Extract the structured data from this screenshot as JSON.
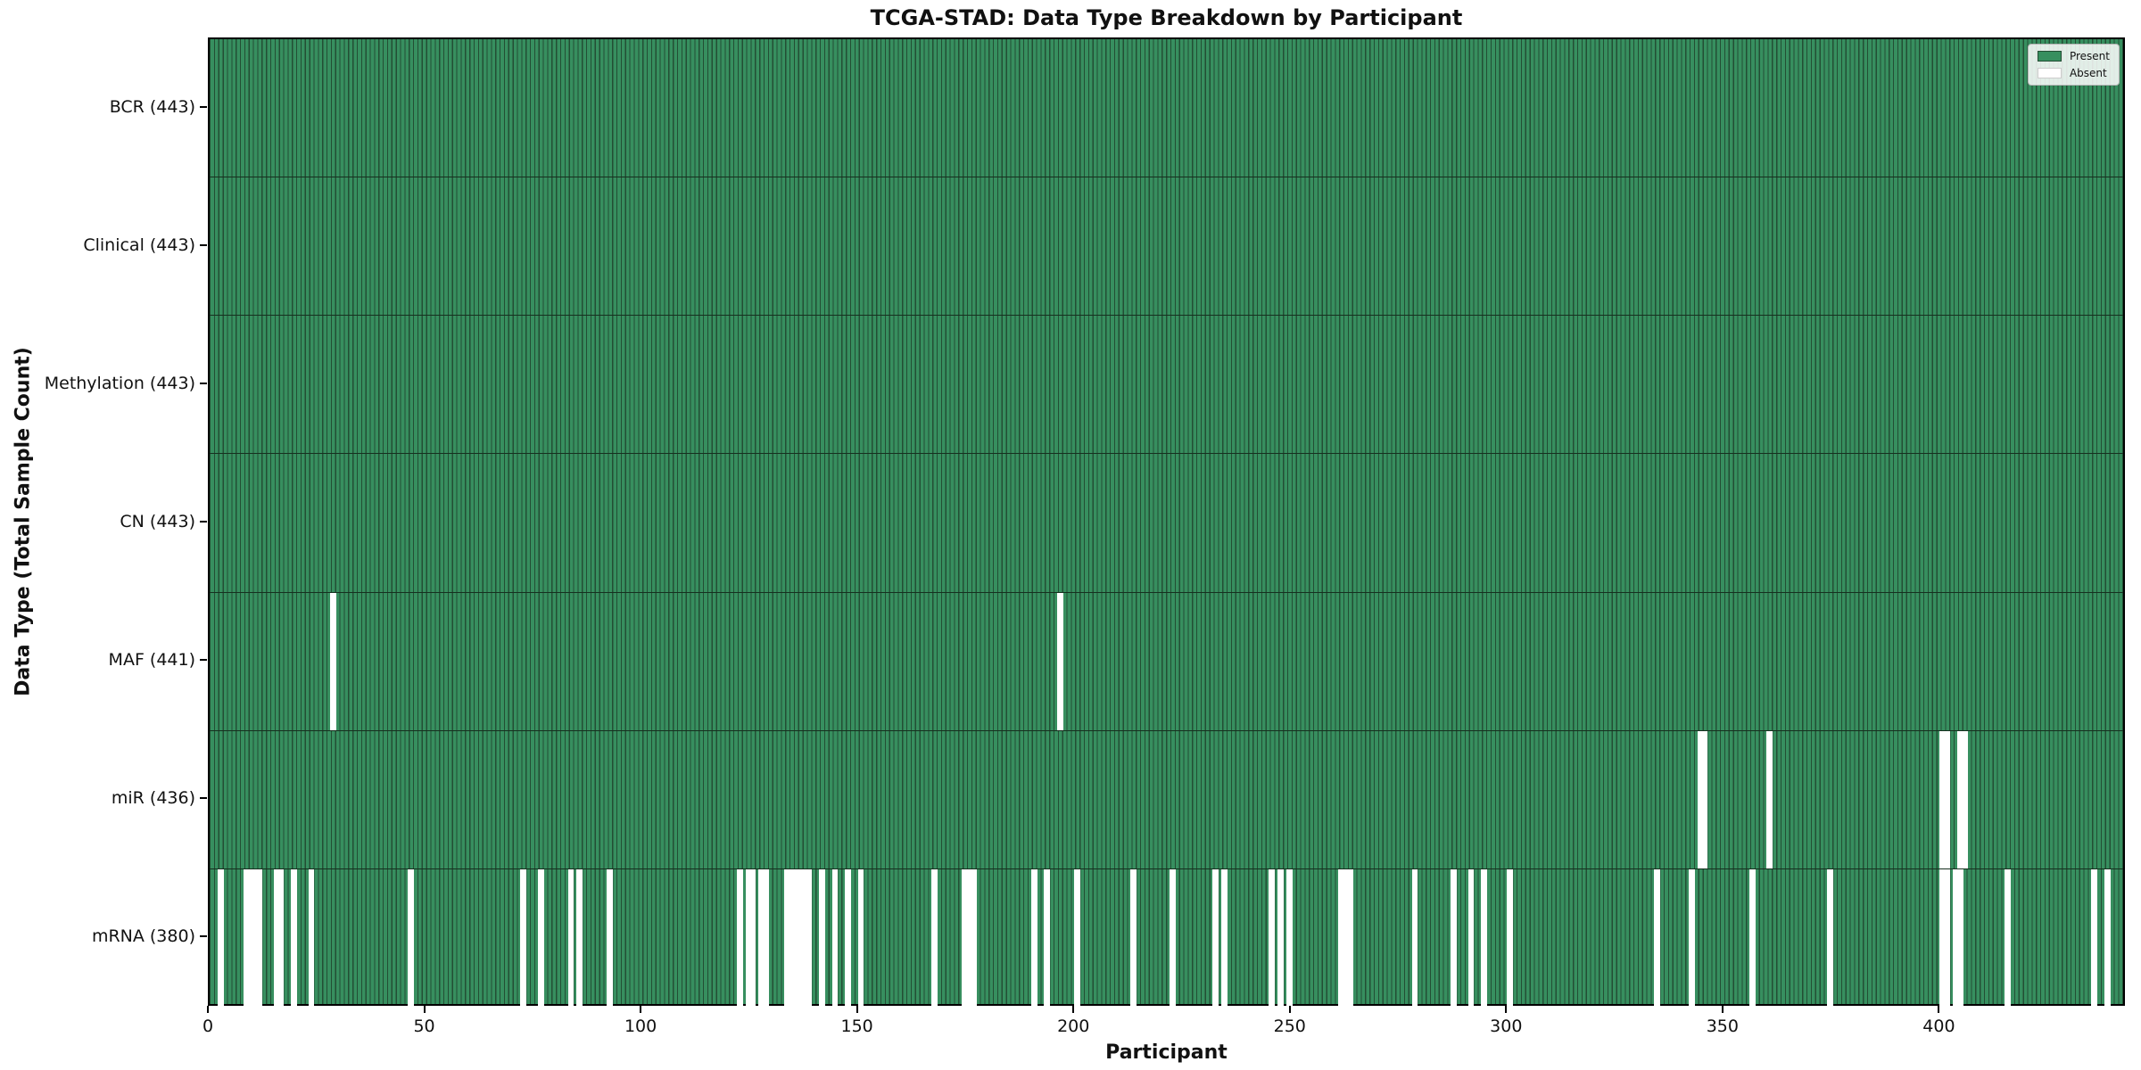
{
  "chart_data": {
    "type": "heatmap",
    "title": "TCGA-STAD: Data Type Breakdown by Participant",
    "xlabel": "Participant",
    "ylabel": "Data Type (Total Sample Count)",
    "n_participants": 443,
    "x_ticks": [
      0,
      50,
      100,
      150,
      200,
      250,
      300,
      350,
      400
    ],
    "grid": false,
    "legend_position": "upper-right",
    "legend": {
      "entries": [
        {
          "label": "Present",
          "value": "present"
        },
        {
          "label": "Absent",
          "value": "absent"
        }
      ]
    },
    "rows": [
      {
        "label": "BCR (443)",
        "data_type": "BCR",
        "total": 443,
        "absent_participants": []
      },
      {
        "label": "Clinical (443)",
        "data_type": "Clinical",
        "total": 443,
        "absent_participants": []
      },
      {
        "label": "Methylation (443)",
        "data_type": "Methylation",
        "total": 443,
        "absent_participants": []
      },
      {
        "label": "CN (443)",
        "data_type": "CN",
        "total": 443,
        "absent_participants": []
      },
      {
        "label": "MAF (441)",
        "data_type": "MAF",
        "total": 441,
        "absent_participants": [
          28,
          196
        ]
      },
      {
        "label": "miR (436)",
        "data_type": "miR",
        "total": 436,
        "absent_participants": [
          344,
          345,
          360,
          400,
          401,
          404,
          405
        ]
      },
      {
        "label": "mRNA (380)",
        "data_type": "mRNA",
        "total": 380,
        "absent_participants": [
          2,
          8,
          9,
          10,
          11,
          15,
          16,
          19,
          23,
          46,
          72,
          76,
          83,
          85,
          92,
          122,
          124,
          125,
          127,
          128,
          133,
          134,
          135,
          136,
          137,
          138,
          141,
          144,
          147,
          150,
          167,
          174,
          175,
          176,
          190,
          193,
          200,
          213,
          222,
          232,
          234,
          245,
          247,
          249,
          261,
          262,
          263,
          278,
          287,
          291,
          294,
          300,
          334,
          342,
          356,
          374,
          400,
          401,
          403,
          404,
          415,
          435,
          438
        ]
      }
    ],
    "colors": {
      "present_fill": "#378f5f",
      "bar_edge": "#234e34",
      "row_border": "#16301f",
      "absent": "#ffffff",
      "plot_border": "#000000",
      "background": "#ffffff"
    }
  }
}
